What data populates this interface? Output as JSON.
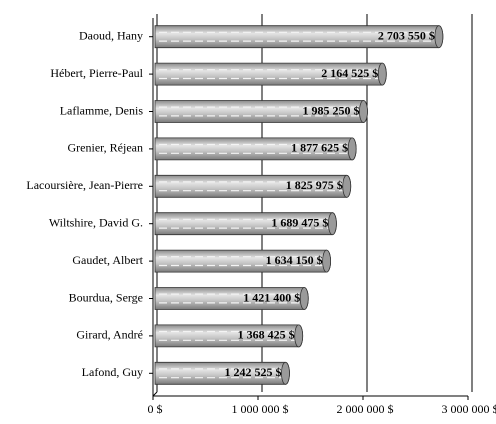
{
  "chart_data": {
    "type": "barh",
    "categories": [
      "Daoud, Hany",
      "Hébert, Pierre-Paul",
      "Laflamme, Denis",
      "Grenier, Réjean",
      "Lacoursière, Jean-Pierre",
      "Wiltshire, David G.",
      "Gaudet, Albert",
      "Bourdua, Serge",
      "Girard, André",
      "Lafond, Guy"
    ],
    "values": [
      2703550,
      2164525,
      1985250,
      1877625,
      1825975,
      1689475,
      1634150,
      1421400,
      1368425,
      1242525
    ],
    "value_labels": [
      "2 703 550 $",
      "2 164 525 $",
      "1 985 250 $",
      "1 877 625 $",
      "1 825 975 $",
      "1 689 475 $",
      "1 634 150 $",
      "1 421 400 $",
      "1 368 425 $",
      "1 242 525 $"
    ],
    "color": "#b0b0b0",
    "xlim": [
      0,
      3000000
    ],
    "xticks": [
      {
        "value": 0,
        "label": "0 $"
      },
      {
        "value": 1000000,
        "label": "1 000 000 $"
      },
      {
        "value": 2000000,
        "label": "2 000 000 $"
      },
      {
        "value": 3000000,
        "label": "3 000 000 $"
      }
    ],
    "grid": true
  }
}
